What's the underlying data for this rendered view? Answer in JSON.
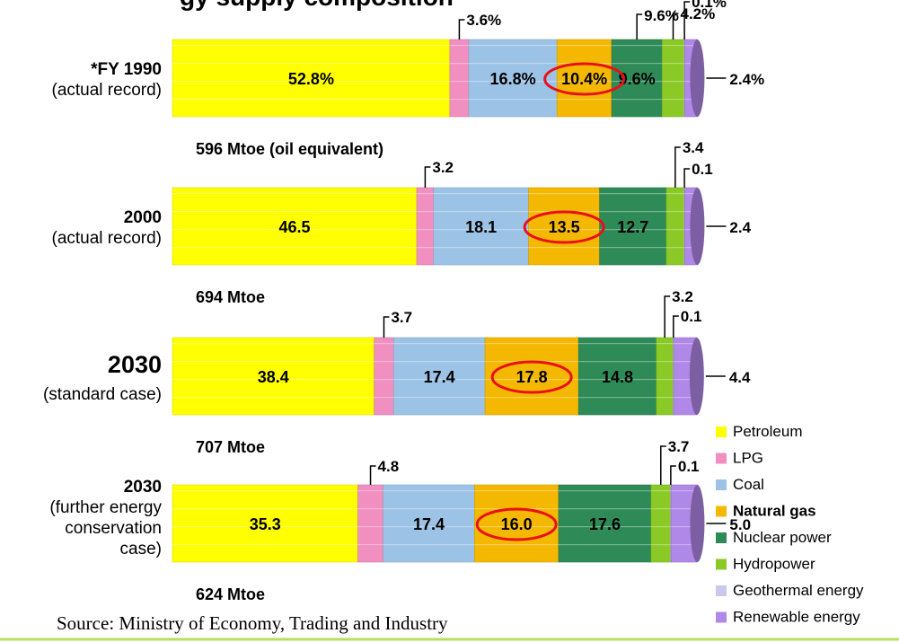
{
  "title_fragment": "gy supply composition",
  "source": "Source: Ministry of Economy, Trading and Industry",
  "chart_data": {
    "type": "bar",
    "orientation": "horizontal",
    "stacked": true,
    "categories": [
      "*FY 1990 (actual record)",
      "2000 (actual record)",
      "2030 (standard case)",
      "2030 (further energy conservation case)"
    ],
    "series": [
      {
        "name": "Petroleum",
        "color": "#ffff00",
        "values": [
          52.8,
          46.5,
          38.4,
          35.3
        ]
      },
      {
        "name": "LPG",
        "color": "#f08fc0",
        "values": [
          3.6,
          3.2,
          3.7,
          4.8
        ]
      },
      {
        "name": "Coal",
        "color": "#9cc3e6",
        "values": [
          16.8,
          18.1,
          17.4,
          17.4
        ]
      },
      {
        "name": "Natural gas",
        "color": "#f5b800",
        "values": [
          10.4,
          13.5,
          17.8,
          16.0
        ]
      },
      {
        "name": "Nuclear power",
        "color": "#2e8b57",
        "values": [
          9.6,
          12.7,
          14.8,
          17.6
        ]
      },
      {
        "name": "Hydropower",
        "color": "#8ac926",
        "values": [
          4.2,
          3.4,
          3.2,
          3.7
        ]
      },
      {
        "name": "Geothermal energy",
        "color": "#c9c9f0",
        "values": [
          0.1,
          0.1,
          0.1,
          0.1
        ]
      },
      {
        "name": "Renewable energy",
        "color": "#b088e8",
        "values": [
          2.4,
          2.4,
          4.4,
          5.0
        ]
      }
    ],
    "legend_position": "bottom-right",
    "grid": false,
    "highlighted_series": "Natural gas"
  },
  "rows": [
    {
      "label_line1": "*FY 1990",
      "label_line2": "(actual record)",
      "label_line3": "",
      "label_line4": "",
      "total": 596,
      "total_label": "596 Mtoe (oil equivalent)",
      "labels": {
        "Petroleum": "52.8%",
        "LPG": "3.6%",
        "Coal": "16.8%",
        "Natural gas": "10.4%",
        "Nuclear power": "9.6%",
        "Hydropower": "4.2%",
        "Geothermal energy": "0.1%",
        "Renewable energy": "2.4%"
      }
    },
    {
      "label_line1": "2000",
      "label_line2": "(actual record)",
      "label_line3": "",
      "label_line4": "",
      "total": 694,
      "total_label": "694 Mtoe",
      "labels": {
        "Petroleum": "46.5",
        "LPG": "3.2",
        "Coal": "18.1",
        "Natural gas": "13.5",
        "Nuclear power": "12.7",
        "Hydropower": "3.4",
        "Geothermal energy": "0.1",
        "Renewable energy": "2.4"
      }
    },
    {
      "label_line1": "2030",
      "label_line2": "(standard case)",
      "label_line3": "",
      "label_line4": "",
      "total": 707,
      "total_label": "707 Mtoe",
      "labels": {
        "Petroleum": "38.4",
        "LPG": "3.7",
        "Coal": "17.4",
        "Natural gas": "17.8",
        "Nuclear power": "14.8",
        "Hydropower": "3.2",
        "Geothermal energy": "0.1",
        "Renewable energy": "4.4"
      }
    },
    {
      "label_line1": "2030",
      "label_line2": "(further energy",
      "label_line3": "conservation",
      "label_line4": "case)",
      "total": 624,
      "total_label": "624 Mtoe",
      "labels": {
        "Petroleum": "35.3",
        "LPG": "4.8",
        "Coal": "17.4",
        "Natural gas": "16.0",
        "Nuclear power": "17.6",
        "Hydropower": "3.7",
        "Geothermal energy": "0.1",
        "Renewable energy": "5.0"
      }
    }
  ]
}
